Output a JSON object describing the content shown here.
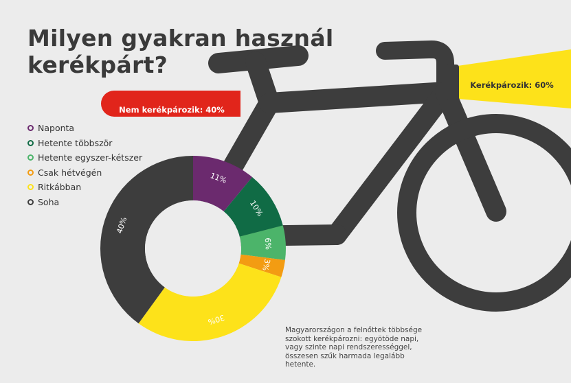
{
  "title": {
    "line1": "Milyen gyakran használ",
    "line2": "kerékpárt?"
  },
  "banners": {
    "not_cycling": {
      "label": "Nem kerékpározik: 40%",
      "value": 40,
      "color": "#e1251b"
    },
    "cycling": {
      "label": "Kerékpározik: 60%",
      "value": 60,
      "color": "#fde21a"
    }
  },
  "colors": {
    "background": "#ececec",
    "bike": "#3d3d3d",
    "text": "#3a3a3a"
  },
  "chart_data": {
    "type": "pie",
    "title": "Milyen gyakran használ kerékpárt?",
    "donut": true,
    "start": "top (12 o'clock), clockwise",
    "categories": [
      "Naponta",
      "Hetente többször",
      "Hetente egyszer-kétszer",
      "Csak hétvégén",
      "Ritkábban",
      "Soha"
    ],
    "values": [
      11,
      10,
      6,
      3,
      30,
      40
    ],
    "labels": [
      "11%",
      "10%",
      "6%",
      "3%",
      "30%",
      "40%"
    ],
    "colors": [
      "#6b2a6e",
      "#106b45",
      "#4cb46a",
      "#f39c12",
      "#fde21a",
      "#3d3d3d"
    ],
    "legend_position": "left, above chart"
  },
  "note": "Magyarországon a felnőttek többsége szokott kerékpározni: egyötöde napi, vagy szinte napi rendszerességgel, összesen szűk harmada legalább hetente."
}
